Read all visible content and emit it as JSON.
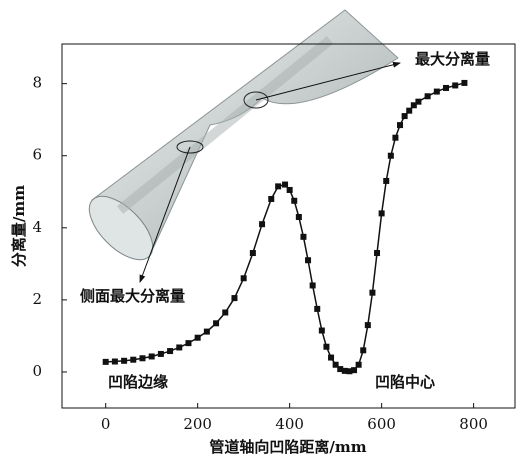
{
  "chart_data": {
    "type": "line",
    "x_label": "管道轴向凹陷距离/mm",
    "y_label": "分离量/mm",
    "annotations": [
      "最大分离量",
      "侧面最大分离量",
      "凹陷边缘",
      "凹陷中心"
    ],
    "x": [
      0,
      20,
      40,
      60,
      80,
      100,
      120,
      140,
      160,
      180,
      200,
      220,
      240,
      260,
      280,
      300,
      320,
      340,
      360,
      375,
      390,
      400,
      410,
      420,
      430,
      440,
      450,
      460,
      470,
      480,
      490,
      500,
      510,
      520,
      530,
      540,
      550,
      560,
      570,
      580,
      590,
      600,
      610,
      620,
      630,
      640,
      650,
      660,
      670,
      680,
      700,
      720,
      740,
      760,
      780
    ],
    "series": [
      {
        "color": "#111111",
        "values": [
          0.28,
          0.29,
          0.31,
          0.34,
          0.38,
          0.43,
          0.5,
          0.58,
          0.68,
          0.8,
          0.95,
          1.12,
          1.35,
          1.65,
          2.05,
          2.6,
          3.3,
          4.1,
          4.8,
          5.15,
          5.2,
          5.05,
          4.75,
          4.3,
          3.75,
          3.1,
          2.4,
          1.75,
          1.15,
          0.7,
          0.4,
          0.2,
          0.08,
          0.03,
          0.02,
          0.05,
          0.2,
          0.6,
          1.3,
          2.2,
          3.3,
          4.4,
          5.3,
          6.0,
          6.5,
          6.85,
          7.1,
          7.25,
          7.4,
          7.5,
          7.65,
          7.78,
          7.88,
          7.95,
          8.02
        ]
      }
    ],
    "xlim": [
      -95,
      890
    ],
    "ylim": [
      -1,
      9.1
    ],
    "xticks": [
      0,
      200,
      400,
      600,
      800
    ],
    "yticks": [
      0,
      2,
      4,
      6,
      8
    ]
  }
}
